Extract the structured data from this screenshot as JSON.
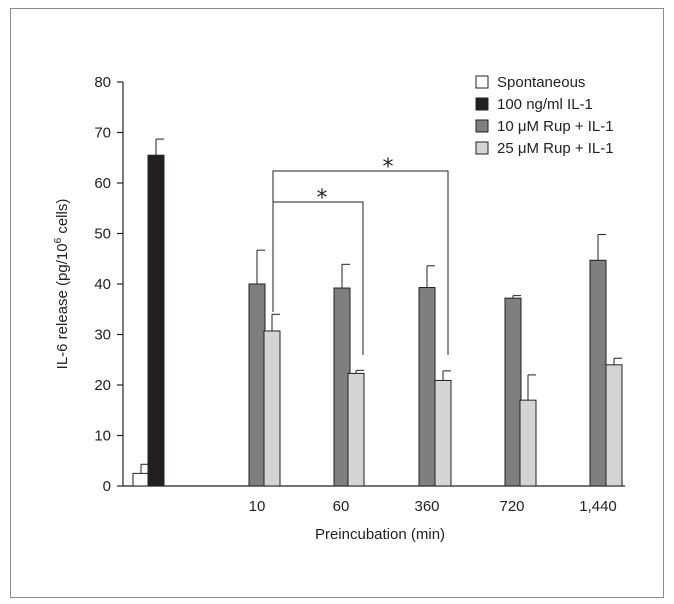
{
  "chart_data": {
    "type": "bar",
    "title": "",
    "xlabel": "Preincubation (min)",
    "ylabel_parts": [
      "IL-6 release (pg/10",
      "6",
      " cells)"
    ],
    "ylim": [
      0,
      80
    ],
    "yticks": [
      "0",
      "10",
      "20",
      "30",
      "40",
      "50",
      "60",
      "70",
      "80"
    ],
    "categories": [
      "",
      "10",
      "60",
      "360",
      "720",
      "1,440"
    ],
    "series": [
      {
        "name": "Spontaneous",
        "color": "#ffffff",
        "values": [
          2.5,
          null,
          null,
          null,
          null,
          null
        ],
        "errors": [
          1.8,
          null,
          null,
          null,
          null,
          null
        ]
      },
      {
        "name": "100 ng/ml IL-1",
        "color": "#231f20",
        "values": [
          65.5,
          null,
          null,
          null,
          null,
          null
        ],
        "errors": [
          3.2,
          null,
          null,
          null,
          null,
          null
        ]
      },
      {
        "name": "10 μM Rup + IL-1",
        "color": "#7f7f7f",
        "values": [
          null,
          40,
          39.2,
          39.3,
          37.2,
          44.7
        ],
        "errors": [
          null,
          6.7,
          4.7,
          4.3,
          0.5,
          5.1
        ]
      },
      {
        "name": "25 μM Rup + IL-1",
        "color": "#d4d4d4",
        "values": [
          null,
          30.7,
          22.3,
          20.9,
          17,
          24
        ],
        "errors": [
          null,
          3.3,
          0.6,
          1.9,
          5,
          1.3
        ]
      }
    ],
    "legend_position": "top-right",
    "significance": [
      {
        "label": "*",
        "from_category": "10",
        "to_category": "60",
        "series": "25 μM Rup + IL-1"
      },
      {
        "label": "*",
        "from_category": "10",
        "to_category": "360",
        "series": "25 μM Rup + IL-1"
      }
    ],
    "grid": false
  }
}
